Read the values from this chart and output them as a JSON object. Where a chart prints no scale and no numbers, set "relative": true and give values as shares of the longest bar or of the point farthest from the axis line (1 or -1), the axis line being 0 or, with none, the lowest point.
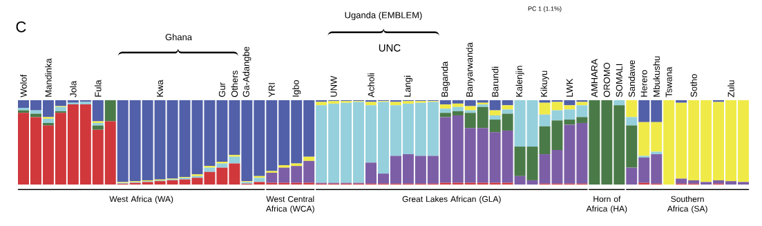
{
  "chart_data": {
    "type": "bar",
    "stacked": true,
    "relative": true,
    "categories": [
      "Wolof",
      null,
      "Mandinka",
      null,
      "Jola",
      null,
      "Fula",
      null,
      null,
      null,
      null,
      "Kwa",
      null,
      null,
      null,
      null,
      "Gur",
      "Others",
      "Ga-Adangbe",
      null,
      "YRI",
      null,
      "Igbo",
      null,
      null,
      "UNW",
      null,
      null,
      "Acholi",
      null,
      null,
      "Langi",
      null,
      null,
      "Baganda",
      null,
      "Banyarwanda",
      null,
      "Barundi",
      null,
      "Kalenjin",
      null,
      "Kikuyu",
      null,
      "LWK",
      null,
      "AMHARA",
      "OROMO",
      "SOMALI",
      "Sandawe",
      "Herero",
      "Mbukushu",
      "Tswana",
      null,
      "Sotho",
      null,
      null,
      "Zulu",
      null
    ],
    "series": [
      {
        "color": "#d0383c",
        "values": [
          0.85,
          0.8,
          0.7,
          0.85,
          0.95,
          0.95,
          0.65,
          0.75,
          0.01,
          0.02,
          0.03,
          0.04,
          0.05,
          0.06,
          0.08,
          0.15,
          0.2,
          0.25,
          0.01,
          0.03,
          0.02,
          0.02,
          0.02,
          0.02,
          0.01,
          0.01,
          0.01,
          0.01,
          0.01,
          0.01,
          0.01,
          0.01,
          0.01,
          0.01,
          0.02,
          0.02,
          0.02,
          0.02,
          0.02,
          0.02,
          0,
          0,
          0.01,
          0.01,
          0.01,
          0.01,
          0,
          0,
          0,
          0,
          0.02,
          0.01,
          0,
          0.01,
          0.01,
          0,
          0.01,
          0,
          0
        ]
      },
      {
        "color": "#7c5ea6",
        "values": [
          0,
          0,
          0,
          0,
          0,
          0,
          0,
          0,
          0,
          0,
          0,
          0,
          0,
          0,
          0,
          0,
          0,
          0,
          0,
          0,
          0.12,
          0.18,
          0.2,
          0.26,
          0.01,
          0.01,
          0.01,
          0.01,
          0.25,
          0.12,
          0.33,
          0.35,
          0.33,
          0.33,
          0.78,
          0.8,
          0.65,
          0.65,
          0.6,
          0.62,
          0.1,
          0.05,
          0.35,
          0.4,
          0.7,
          0.72,
          0,
          0,
          0,
          0.2,
          0.3,
          0.35,
          0,
          0.06,
          0.04,
          0.03,
          0.04,
          0.04,
          0.03
        ]
      },
      {
        "color": "#4a7a48",
        "values": [
          0.03,
          0.04,
          0.03,
          0.02,
          0,
          0,
          0.05,
          0.25,
          0,
          0,
          0,
          0,
          0,
          0,
          0,
          0,
          0,
          0,
          0,
          0,
          0,
          0,
          0,
          0,
          0,
          0,
          0,
          0,
          0,
          0,
          0,
          0,
          0,
          0,
          0.05,
          0.05,
          0.18,
          0.25,
          0.15,
          0.2,
          0.35,
          0.4,
          0.33,
          0.35,
          0.06,
          0.07,
          1,
          1,
          0.94,
          0.5,
          0,
          0,
          0,
          0,
          0,
          0,
          0,
          0,
          0
        ]
      },
      {
        "color": "#95d0dc",
        "values": [
          0.03,
          0.04,
          0.05,
          0.05,
          0.02,
          0.03,
          0.03,
          0,
          0.01,
          0.01,
          0.01,
          0.01,
          0.01,
          0.02,
          0.02,
          0.05,
          0.05,
          0.08,
          0.02,
          0.05,
          0,
          0,
          0,
          0,
          0.92,
          0.94,
          0.95,
          0.96,
          0.68,
          0.85,
          0.6,
          0.6,
          0.63,
          0.64,
          0.05,
          0.05,
          0.03,
          0.03,
          0.05,
          0.05,
          0.55,
          0.55,
          0.14,
          0.12,
          0.12,
          0.14,
          0,
          0,
          0.06,
          0.1,
          0.02,
          0.03,
          0,
          0,
          0,
          0,
          0,
          0,
          0
        ]
      },
      {
        "color": "#f0ea48",
        "values": [
          0,
          0,
          0.02,
          0.01,
          0,
          0,
          0.02,
          0,
          0.01,
          0.01,
          0.01,
          0.01,
          0.01,
          0.01,
          0.02,
          0.02,
          0.02,
          0.02,
          0.01,
          0.02,
          0.02,
          0.03,
          0.03,
          0.05,
          0.04,
          0.03,
          0.02,
          0.01,
          0.04,
          0.01,
          0.04,
          0.03,
          0.02,
          0.01,
          0.05,
          0.04,
          0.05,
          0.02,
          0.06,
          0.05,
          0,
          0,
          0.14,
          0.1,
          0.05,
          0.04,
          0,
          0,
          0,
          0.2,
          0.4,
          0.35,
          1,
          0.9,
          0.95,
          0.97,
          0.93,
          0.96,
          0.97
        ]
      },
      {
        "color": "#5160a8",
        "values": [
          0.09,
          0.12,
          0.2,
          0.07,
          0.03,
          0.02,
          0.25,
          0,
          0.97,
          0.96,
          0.95,
          0.94,
          0.93,
          0.91,
          0.88,
          0.78,
          0.73,
          0.65,
          0.96,
          0.9,
          0.84,
          0.77,
          0.75,
          0.67,
          0.02,
          0.01,
          0.01,
          0.01,
          0.02,
          0.01,
          0.02,
          0.01,
          0.01,
          0.01,
          0.05,
          0.04,
          0.07,
          0.03,
          0.12,
          0.06,
          0,
          0,
          0.03,
          0.02,
          0.06,
          0.02,
          0,
          0,
          0,
          0,
          0.26,
          0.26,
          0,
          0.03,
          0,
          0,
          0.02,
          0,
          0
        ]
      }
    ],
    "annotations": [
      "C",
      "Ghana",
      "Uganda (EMBLEM)",
      "UNC",
      "PC 1 (1.1%)",
      "West Africa (WA)",
      "West Central Africa (WCA)",
      "Great Lakes African (GLA)",
      "Horn of Africa (HA)",
      "Southern Africa (SA)"
    ]
  }
}
